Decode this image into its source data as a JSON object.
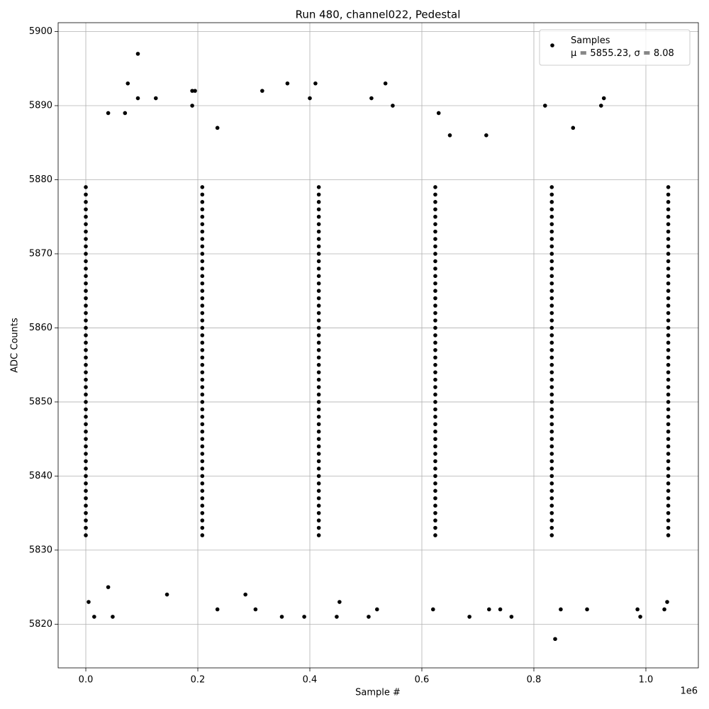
{
  "chart_data": {
    "type": "scatter",
    "title": "Run 480, channel022, Pedestal",
    "x_label": "Sample #",
    "y_label": "ADC Counts",
    "x_offset": "1e6",
    "legend": "upper right",
    "grid": true,
    "xlim": [
      -49400,
      1093700
    ],
    "ylim": [
      5814.1,
      5901.2
    ],
    "xticks": [
      {
        "value": 0,
        "label": "0.0"
      },
      {
        "value": 200000,
        "label": "0.2"
      },
      {
        "value": 400000,
        "label": "0.4"
      },
      {
        "value": 600000,
        "label": "0.6"
      },
      {
        "value": 800000,
        "label": "0.8"
      },
      {
        "value": 1000000,
        "label": "1.0"
      }
    ],
    "yticks": [
      5820,
      5830,
      5840,
      5850,
      5860,
      5870,
      5880,
      5890,
      5900
    ],
    "series": [
      {
        "name": "Samples\nμ = 5855.23, σ = 8.08",
        "color": "#000000",
        "x": [
          93000,
          75000,
          360000,
          410000,
          535000,
          315000,
          195000,
          190000,
          920000,
          925000,
          820000,
          548000,
          190000,
          125000,
          93000,
          400000,
          510000,
          838000,
          15000,
          48000,
          350000,
          390000,
          448000,
          505000,
          685000,
          760000,
          990000,
          5000,
          453000,
          1038000,
          235000,
          303000,
          520000,
          620000,
          720000,
          740000,
          848000,
          895000,
          985000,
          1033000,
          40000,
          70000,
          630000,
          235000,
          870000,
          715000,
          650000,
          40000,
          145000,
          285000,
          0,
          208000,
          416000,
          624000,
          832000,
          1040000,
          0,
          208000,
          416000,
          624000,
          832000,
          1040000,
          0,
          208000,
          416000,
          624000,
          832000,
          1040000,
          0,
          208000,
          416000,
          624000,
          832000,
          1040000,
          0,
          208000,
          416000,
          624000,
          832000,
          1040000,
          0,
          208000,
          416000,
          624000,
          832000,
          1040000,
          0,
          208000,
          416000,
          624000,
          832000,
          1040000,
          0,
          208000,
          416000,
          624000,
          832000,
          1040000,
          0,
          208000,
          416000,
          624000,
          832000,
          1040000,
          0,
          208000,
          416000,
          624000,
          832000,
          1040000,
          0,
          208000,
          416000,
          624000,
          832000,
          1040000,
          0,
          208000,
          416000,
          624000,
          832000,
          1040000,
          0,
          208000,
          416000,
          624000,
          832000,
          1040000,
          0,
          208000,
          416000,
          624000,
          832000,
          1040000,
          0,
          208000,
          416000,
          624000,
          832000,
          1040000,
          0,
          208000,
          416000,
          624000,
          832000,
          1040000,
          0,
          208000,
          416000,
          624000,
          832000,
          1040000,
          0,
          208000,
          416000,
          624000,
          832000,
          1040000,
          0,
          208000,
          416000,
          624000,
          832000,
          1040000,
          0,
          208000,
          416000,
          624000,
          832000,
          1040000,
          0,
          208000,
          416000,
          624000,
          832000,
          1040000,
          0,
          208000,
          416000,
          624000,
          832000,
          1040000,
          0,
          208000,
          416000,
          624000,
          832000,
          1040000,
          0,
          208000,
          416000,
          624000,
          832000,
          1040000,
          0,
          208000,
          416000,
          624000,
          832000,
          1040000,
          0,
          208000,
          416000,
          624000,
          832000,
          1040000,
          0,
          208000,
          416000,
          624000,
          832000,
          1040000,
          0,
          208000,
          416000,
          624000,
          832000,
          1040000,
          0,
          208000,
          416000,
          624000,
          832000,
          1040000,
          0,
          208000,
          416000,
          624000,
          832000,
          1040000,
          0,
          208000,
          416000,
          624000,
          832000,
          1040000,
          0,
          208000,
          416000,
          624000,
          832000,
          1040000,
          0,
          208000,
          416000,
          624000,
          832000,
          1040000,
          0,
          208000,
          416000,
          624000,
          832000,
          1040000,
          0,
          208000,
          416000,
          624000,
          832000,
          1040000,
          0,
          208000,
          416000,
          624000,
          832000,
          1040000,
          0,
          208000,
          416000,
          624000,
          832000,
          1040000,
          0,
          208000,
          416000,
          624000,
          832000,
          1040000,
          0,
          208000,
          416000,
          624000,
          832000,
          1040000,
          0,
          208000,
          416000,
          624000,
          832000,
          1040000,
          0,
          208000,
          416000,
          624000,
          832000,
          1040000,
          0,
          208000,
          416000,
          624000,
          832000,
          1040000,
          0,
          208000,
          416000,
          624000,
          832000,
          1040000,
          0,
          208000,
          416000,
          624000,
          832000,
          1040000,
          0,
          208000,
          416000,
          624000,
          832000,
          1040000,
          0,
          208000,
          416000,
          624000,
          832000,
          1040000,
          0,
          208000,
          416000,
          624000,
          832000,
          1040000,
          0,
          208000,
          416000,
          624000,
          832000,
          1040000
        ],
        "y": [
          5897,
          5893,
          5893,
          5893,
          5893,
          5892,
          5892,
          5892,
          5890,
          5891,
          5890,
          5890,
          5890,
          5891,
          5891,
          5891,
          5891,
          5818,
          5821,
          5821,
          5821,
          5821,
          5821,
          5821,
          5821,
          5821,
          5821,
          5823,
          5823,
          5823,
          5822,
          5822,
          5822,
          5822,
          5822,
          5822,
          5822,
          5822,
          5822,
          5822,
          5889,
          5889,
          5889,
          5887,
          5887,
          5886,
          5886,
          5825,
          5824,
          5824,
          5832,
          5832,
          5832,
          5832,
          5832,
          5832,
          5833,
          5833,
          5833,
          5833,
          5833,
          5833,
          5834,
          5834,
          5834,
          5834,
          5834,
          5834,
          5835,
          5835,
          5835,
          5835,
          5835,
          5835,
          5836,
          5836,
          5836,
          5836,
          5836,
          5836,
          5837,
          5837,
          5837,
          5837,
          5837,
          5837,
          5838,
          5838,
          5838,
          5838,
          5838,
          5838,
          5839,
          5839,
          5839,
          5839,
          5839,
          5839,
          5840,
          5840,
          5840,
          5840,
          5840,
          5840,
          5841,
          5841,
          5841,
          5841,
          5841,
          5841,
          5842,
          5842,
          5842,
          5842,
          5842,
          5842,
          5843,
          5843,
          5843,
          5843,
          5843,
          5843,
          5844,
          5844,
          5844,
          5844,
          5844,
          5844,
          5845,
          5845,
          5845,
          5845,
          5845,
          5845,
          5846,
          5846,
          5846,
          5846,
          5846,
          5846,
          5847,
          5847,
          5847,
          5847,
          5847,
          5847,
          5848,
          5848,
          5848,
          5848,
          5848,
          5848,
          5849,
          5849,
          5849,
          5849,
          5849,
          5849,
          5850,
          5850,
          5850,
          5850,
          5850,
          5850,
          5851,
          5851,
          5851,
          5851,
          5851,
          5851,
          5852,
          5852,
          5852,
          5852,
          5852,
          5852,
          5853,
          5853,
          5853,
          5853,
          5853,
          5853,
          5854,
          5854,
          5854,
          5854,
          5854,
          5854,
          5855,
          5855,
          5855,
          5855,
          5855,
          5855,
          5856,
          5856,
          5856,
          5856,
          5856,
          5856,
          5857,
          5857,
          5857,
          5857,
          5857,
          5857,
          5858,
          5858,
          5858,
          5858,
          5858,
          5858,
          5859,
          5859,
          5859,
          5859,
          5859,
          5859,
          5860,
          5860,
          5860,
          5860,
          5860,
          5860,
          5861,
          5861,
          5861,
          5861,
          5861,
          5861,
          5862,
          5862,
          5862,
          5862,
          5862,
          5862,
          5863,
          5863,
          5863,
          5863,
          5863,
          5863,
          5864,
          5864,
          5864,
          5864,
          5864,
          5864,
          5865,
          5865,
          5865,
          5865,
          5865,
          5865,
          5866,
          5866,
          5866,
          5866,
          5866,
          5866,
          5867,
          5867,
          5867,
          5867,
          5867,
          5867,
          5868,
          5868,
          5868,
          5868,
          5868,
          5868,
          5869,
          5869,
          5869,
          5869,
          5869,
          5869,
          5870,
          5870,
          5870,
          5870,
          5870,
          5870,
          5871,
          5871,
          5871,
          5871,
          5871,
          5871,
          5872,
          5872,
          5872,
          5872,
          5872,
          5872,
          5873,
          5873,
          5873,
          5873,
          5873,
          5873,
          5874,
          5874,
          5874,
          5874,
          5874,
          5874,
          5875,
          5875,
          5875,
          5875,
          5875,
          5875,
          5876,
          5876,
          5876,
          5876,
          5876,
          5876,
          5877,
          5877,
          5877,
          5877,
          5877,
          5877,
          5878,
          5878,
          5878,
          5878,
          5878,
          5878,
          5879,
          5879,
          5879,
          5879,
          5879,
          5879
        ]
      }
    ]
  }
}
